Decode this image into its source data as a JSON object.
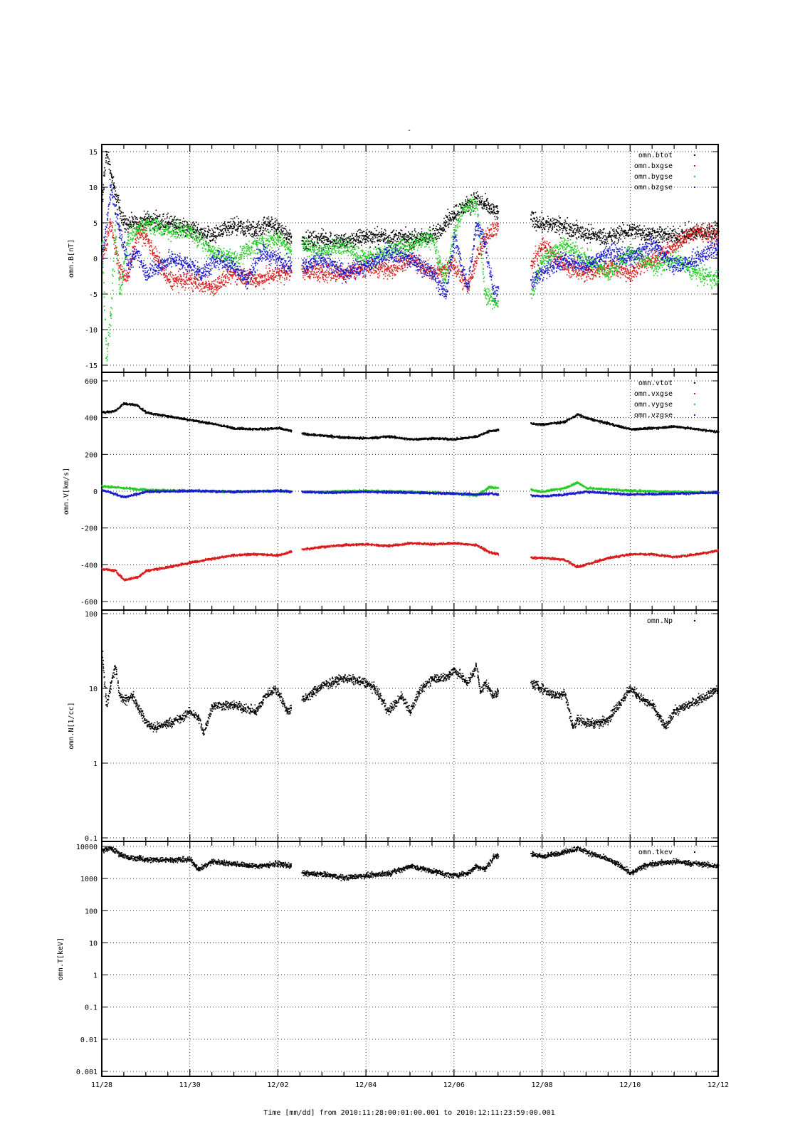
{
  "page": {
    "top_mark": "-",
    "xlabel": "Time [mm/dd]  from 2010:11:28:00:01:00.001  to  2010:12:11:23:59:00.001"
  },
  "x_axis": {
    "range_days": [
      0,
      14
    ],
    "tick_days": [
      0,
      2,
      4,
      6,
      8,
      10,
      12,
      14
    ],
    "tick_labels": [
      "11/28",
      "11/30",
      "12/02",
      "12/04",
      "12/06",
      "12/08",
      "12/10",
      "12/12"
    ],
    "data_gaps_days": [
      [
        4.3,
        4.55
      ],
      [
        9.05,
        9.75
      ]
    ]
  },
  "chart_data": [
    {
      "type": "scatter",
      "ylabel": "omn.B[nT]",
      "ylim": [
        -15,
        15
      ],
      "yscale": "linear",
      "yticks": [
        -15,
        -10,
        -5,
        0,
        5,
        10,
        15
      ],
      "yticklabels": [
        "-15",
        "-10",
        "-5",
        "0",
        "5",
        "10",
        "15"
      ],
      "grid": true,
      "legend": "top-right",
      "series": [
        {
          "name": "omn.btot",
          "color": "#000000",
          "x": [
            0,
            0.1,
            0.2,
            0.3,
            0.5,
            0.8,
            1.0,
            1.5,
            2.0,
            2.5,
            3.0,
            3.5,
            3.8,
            4.0,
            4.3,
            4.55,
            5.0,
            5.5,
            6.0,
            6.5,
            7.0,
            7.5,
            7.8,
            8.0,
            8.3,
            8.5,
            8.7,
            8.8,
            9.0,
            9.75,
            10.0,
            10.5,
            11.0,
            11.5,
            12.0,
            12.5,
            13.0,
            13.5,
            14.0
          ],
          "y": [
            8,
            15,
            12,
            9,
            5,
            4.8,
            5.5,
            5,
            4.2,
            3.2,
            4.5,
            4,
            5,
            4.2,
            3,
            2.5,
            2.8,
            2.4,
            3.2,
            3,
            2.8,
            3.2,
            5,
            6.5,
            7.5,
            8.5,
            7.5,
            7,
            6.5,
            5.5,
            5,
            4.5,
            3.5,
            3,
            4,
            3.5,
            3.2,
            3.8,
            4
          ]
        },
        {
          "name": "omn.bxgse",
          "color": "#d81b1b",
          "x": [
            0,
            0.2,
            0.4,
            0.6,
            0.8,
            1.0,
            1.5,
            2.0,
            2.5,
            3.0,
            3.5,
            4.0,
            4.3,
            4.55,
            5.0,
            5.5,
            6.0,
            6.5,
            7.0,
            7.5,
            8.0,
            8.3,
            8.6,
            8.8,
            9.0,
            9.75,
            10.0,
            10.5,
            11.0,
            11.5,
            12.0,
            12.5,
            13.0,
            13.5,
            14.0
          ],
          "y": [
            0,
            5,
            -2,
            -2.5,
            4,
            3,
            -3,
            -3,
            -4,
            -2,
            -3,
            -2,
            -2,
            -1.5,
            -2,
            -2,
            -1,
            -1.5,
            0,
            -2,
            -1,
            -4,
            2,
            4,
            4.5,
            -1,
            2,
            -1,
            -2,
            -1,
            -2,
            0,
            2,
            4,
            3
          ]
        },
        {
          "name": "omn.bygse",
          "color": "#22cc22",
          "x": [
            0,
            0.1,
            0.2,
            0.3,
            0.4,
            0.6,
            0.8,
            1.0,
            1.5,
            2.0,
            2.5,
            3.0,
            3.5,
            4.0,
            4.3,
            4.55,
            5.0,
            5.5,
            6.0,
            6.5,
            7.0,
            7.5,
            7.8,
            8.0,
            8.2,
            8.5,
            8.7,
            8.9,
            9.0,
            9.75,
            10.0,
            10.5,
            11.0,
            11.5,
            12.0,
            12.5,
            13.0,
            13.5,
            14.0
          ],
          "y": [
            2,
            -14,
            -8,
            4,
            -5,
            3,
            4,
            5,
            4,
            4,
            1,
            0,
            2,
            3,
            1,
            2,
            1,
            2,
            0,
            1,
            2,
            3,
            -3,
            4,
            7,
            8,
            -5,
            -6,
            -6,
            -5,
            0,
            2,
            0,
            -2,
            1,
            -1,
            0,
            -2,
            -3
          ]
        },
        {
          "name": "omn.bzgse",
          "color": "#1a1acc",
          "x": [
            0,
            0.2,
            0.4,
            0.6,
            0.8,
            1.0,
            1.3,
            1.6,
            2.0,
            2.3,
            2.6,
            3.0,
            3.3,
            3.6,
            4.0,
            4.3,
            4.55,
            5.0,
            5.5,
            6.0,
            6.5,
            7.0,
            7.5,
            7.8,
            8.0,
            8.3,
            8.5,
            8.7,
            8.9,
            9.0,
            9.75,
            10.0,
            10.5,
            11.0,
            11.5,
            12.0,
            12.5,
            13.0,
            13.5,
            14.0
          ],
          "y": [
            0,
            10,
            4,
            -1,
            1,
            -2,
            -1,
            0,
            -1,
            -2,
            0,
            -1,
            -3,
            1,
            0,
            -1,
            -1,
            0,
            -2,
            -1,
            1,
            0,
            -2,
            -5,
            3,
            -4,
            5,
            2,
            -5,
            -4,
            -3,
            -2,
            0,
            -1,
            1,
            0,
            2,
            -1,
            0,
            2
          ]
        }
      ]
    },
    {
      "type": "scatter",
      "ylabel": "omn.V[km/s]",
      "ylim": [
        -600,
        600
      ],
      "yscale": "linear",
      "yticks": [
        -600,
        -400,
        -200,
        0,
        200,
        400,
        600
      ],
      "yticklabels": [
        "-600",
        "-400",
        "-200",
        "0",
        "200",
        "400",
        "600"
      ],
      "grid": true,
      "legend": "top-right",
      "series": [
        {
          "name": "omn.vtot",
          "color": "#000000",
          "x": [
            0,
            0.3,
            0.5,
            0.8,
            1.0,
            1.5,
            2.0,
            2.5,
            3.0,
            3.5,
            4.0,
            4.3,
            4.55,
            5.0,
            5.5,
            6.0,
            6.5,
            7.0,
            7.5,
            8.0,
            8.5,
            8.8,
            9.0,
            9.75,
            10.0,
            10.5,
            10.8,
            11.0,
            11.5,
            12.0,
            12.5,
            13.0,
            13.5,
            14.0
          ],
          "y": [
            430,
            440,
            480,
            470,
            430,
            410,
            390,
            370,
            345,
            340,
            345,
            330,
            315,
            305,
            295,
            290,
            300,
            285,
            290,
            285,
            300,
            330,
            335,
            370,
            365,
            380,
            420,
            400,
            370,
            340,
            345,
            355,
            340,
            325
          ]
        },
        {
          "name": "omn.vxgse",
          "color": "#d81b1b",
          "x": [
            0,
            0.3,
            0.5,
            0.8,
            1.0,
            1.5,
            2.0,
            2.5,
            3.0,
            3.5,
            4.0,
            4.3,
            4.55,
            5.0,
            5.5,
            6.0,
            6.5,
            7.0,
            7.5,
            8.0,
            8.5,
            8.8,
            9.0,
            9.75,
            10.0,
            10.5,
            10.8,
            11.0,
            11.5,
            12.0,
            12.5,
            13.0,
            13.5,
            14.0
          ],
          "y": [
            -420,
            -430,
            -480,
            -465,
            -430,
            -410,
            -385,
            -365,
            -345,
            -340,
            -345,
            -325,
            -315,
            -300,
            -290,
            -285,
            -295,
            -280,
            -285,
            -280,
            -290,
            -330,
            -340,
            -360,
            -360,
            -370,
            -410,
            -395,
            -360,
            -340,
            -340,
            -355,
            -340,
            -320
          ]
        },
        {
          "name": "omn.vygse",
          "color": "#22cc22",
          "x": [
            0,
            0.5,
            1.0,
            2.0,
            3.0,
            4.0,
            4.3,
            4.55,
            5.0,
            6.0,
            7.0,
            8.0,
            8.5,
            8.8,
            9.0,
            9.75,
            10.0,
            10.5,
            10.8,
            11.0,
            12.0,
            13.0,
            14.0
          ],
          "y": [
            30,
            20,
            10,
            5,
            0,
            5,
            0,
            0,
            0,
            5,
            0,
            -10,
            -20,
            25,
            20,
            10,
            0,
            20,
            50,
            20,
            5,
            0,
            -5
          ]
        },
        {
          "name": "omn.vzgse",
          "color": "#1a1acc",
          "x": [
            0,
            0.5,
            1.0,
            2.0,
            3.0,
            4.0,
            4.3,
            4.55,
            5.0,
            6.0,
            7.0,
            8.0,
            8.5,
            8.8,
            9.0,
            9.75,
            10.0,
            10.5,
            11.0,
            12.0,
            13.0,
            14.0
          ],
          "y": [
            10,
            -30,
            0,
            5,
            0,
            5,
            0,
            0,
            -5,
            0,
            -5,
            -10,
            -15,
            -10,
            -15,
            -20,
            -25,
            -15,
            0,
            -15,
            -10,
            -5
          ]
        }
      ]
    },
    {
      "type": "scatter",
      "ylabel": "omn.N[1/cc]",
      "ylim": [
        0.1,
        100
      ],
      "yscale": "log",
      "yticks": [
        0.1,
        1,
        10,
        100
      ],
      "yticklabels": [
        "0.1",
        "1",
        "10",
        "100"
      ],
      "grid": true,
      "legend": "top-right",
      "series": [
        {
          "name": "omn.Np",
          "color": "#000000",
          "x": [
            0,
            0.1,
            0.2,
            0.3,
            0.4,
            0.5,
            0.7,
            0.8,
            1.0,
            1.2,
            1.5,
            1.8,
            2.0,
            2.2,
            2.3,
            2.5,
            3.0,
            3.5,
            3.7,
            3.9,
            4.0,
            4.2,
            4.3,
            4.55,
            4.8,
            5.0,
            5.5,
            6.0,
            6.2,
            6.5,
            6.8,
            7.0,
            7.2,
            7.5,
            7.8,
            8.0,
            8.3,
            8.5,
            8.6,
            8.7,
            8.9,
            9.0,
            9.75,
            10.0,
            10.3,
            10.5,
            10.7,
            10.8,
            11.0,
            11.3,
            11.5,
            11.8,
            12.0,
            12.3,
            12.5,
            12.8,
            13.0,
            13.5,
            14.0
          ],
          "y": [
            30,
            6,
            12,
            20,
            8,
            7,
            8,
            6,
            3.5,
            3,
            3.5,
            4,
            5,
            4,
            2.5,
            6,
            6,
            5,
            8,
            10,
            9,
            5,
            5.5,
            7,
            9,
            11,
            14,
            12,
            10,
            5,
            8,
            5,
            9,
            14,
            14,
            18,
            12,
            20,
            9,
            12,
            8,
            9,
            12,
            10,
            8,
            9,
            3,
            4,
            3.5,
            3.5,
            4,
            7,
            10,
            7,
            6,
            3,
            5,
            7,
            10
          ]
        }
      ]
    },
    {
      "type": "scatter",
      "ylabel": "omn.T[keV]",
      "ylim": [
        0.001,
        20000
      ],
      "yscale": "log",
      "yticks": [
        0.001,
        0.01,
        0.1,
        1,
        10,
        100,
        1000,
        10000
      ],
      "yticklabels": [
        "0.001",
        "0.01",
        "0.1",
        "1",
        "10",
        "100",
        "1000",
        "10000"
      ],
      "grid": true,
      "legend": "top-right",
      "series": [
        {
          "name": "omn.tkev",
          "color": "#000000",
          "x": [
            0,
            0.2,
            0.4,
            0.6,
            0.8,
            1.0,
            1.5,
            2.0,
            2.2,
            2.5,
            3.0,
            3.5,
            4.0,
            4.3,
            4.55,
            5.0,
            5.5,
            6.0,
            6.5,
            7.0,
            7.5,
            7.8,
            8.0,
            8.3,
            8.5,
            8.7,
            8.9,
            9.0,
            9.75,
            10.0,
            10.5,
            10.8,
            11.0,
            11.5,
            11.8,
            12.0,
            12.3,
            12.5,
            13.0,
            13.5,
            14.0
          ],
          "y": [
            8000,
            9000,
            6000,
            4500,
            4500,
            4000,
            4000,
            4000,
            2000,
            3500,
            3000,
            2500,
            3000,
            2500,
            1500,
            1400,
            1100,
            1300,
            1500,
            2500,
            1800,
            1400,
            1300,
            1500,
            2500,
            2000,
            5000,
            5500,
            6000,
            5000,
            7000,
            9000,
            7000,
            4000,
            2500,
            1500,
            2500,
            3000,
            3500,
            3000,
            2500
          ]
        }
      ]
    }
  ]
}
